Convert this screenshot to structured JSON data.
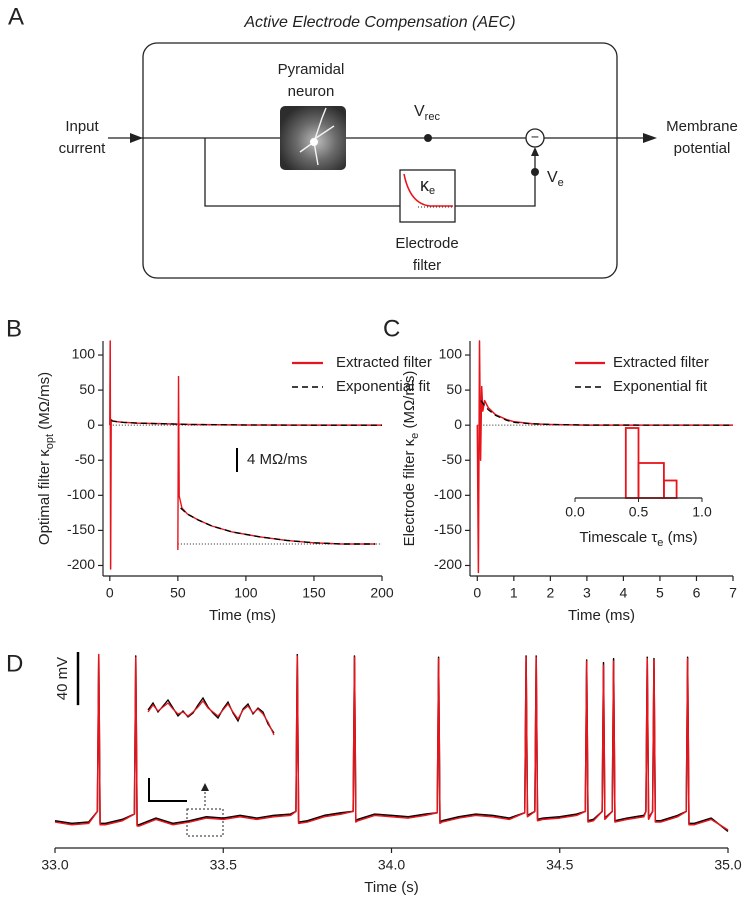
{
  "panel_labels": [
    "A",
    "B",
    "C",
    "D"
  ],
  "diagram": {
    "title": "Active Electrode Compensation (AEC)",
    "input": [
      "Input",
      "current"
    ],
    "output": [
      "Membrane",
      "potential"
    ],
    "neuron": [
      "Pyramidal",
      "neuron"
    ],
    "v_rec": {
      "base": "V",
      "sub": "rec"
    },
    "v_e": {
      "base": "V",
      "sub": "e"
    },
    "filter_symbol": {
      "base": "κ",
      "sub": "e"
    },
    "filter": [
      "Electrode",
      "filter"
    ],
    "subtract": "−"
  },
  "chart_data": [
    {
      "type": "line",
      "xlabel": "Time (ms)",
      "ylabel": {
        "base": "Optimal filter κ",
        "sub": "opt",
        "rest": " (MΩ/ms)"
      },
      "xlim": [
        -5,
        200
      ],
      "ylim": [
        -215,
        120
      ],
      "xticks": [
        0,
        50,
        100,
        150,
        200
      ],
      "yticks": [
        -200,
        -150,
        -100,
        -50,
        0,
        50,
        100
      ],
      "legend": "upper right",
      "series": [
        {
          "name": "Extracted filter",
          "color": "#e8141c",
          "style": "solid",
          "x": [
            0,
            0.3,
            0.6,
            1,
            2,
            5,
            10,
            20,
            40,
            60,
            100,
            150,
            200
          ],
          "values": [
            0,
            120,
            -205,
            8,
            6,
            5,
            4,
            3,
            2,
            1,
            0.3,
            0,
            0
          ]
        },
        {
          "name": "Exponential fit",
          "color": "#000000",
          "style": "dashed",
          "x": [
            1,
            2,
            5,
            10,
            20,
            40,
            60,
            100,
            150,
            200
          ],
          "values": [
            7,
            6,
            5,
            4,
            3,
            2,
            1,
            0.3,
            0,
            0
          ]
        }
      ],
      "inset": {
        "ylim": [
          -2,
          30
        ],
        "scale_bar": {
          "value": 4,
          "label": "4 MΩ/ms"
        },
        "series": [
          {
            "color": "#e8141c",
            "style": "solid",
            "x": [
              50,
              50.5,
              51,
              53,
              57,
              65,
              75,
              90,
              110,
              130,
              150,
              170,
              195
            ],
            "values": [
              -1,
              28,
              8,
              6,
              5,
              4,
              3,
              2,
              1.2,
              0.6,
              0.2,
              0,
              0
            ]
          },
          {
            "color": "#000000",
            "style": "dashed",
            "x": [
              52,
              57,
              65,
              75,
              90,
              110,
              130,
              150,
              170,
              195
            ],
            "values": [
              6,
              5,
              4,
              3,
              2,
              1.2,
              0.6,
              0.2,
              0,
              0
            ]
          }
        ]
      }
    },
    {
      "type": "line",
      "xlabel": "Time (ms)",
      "ylabel": {
        "base": "Electrode filter κ",
        "sub": "e",
        "rest": " (MΩ/ms)"
      },
      "xlim": [
        -0.2,
        7
      ],
      "ylim": [
        -215,
        120
      ],
      "xticks": [
        0,
        1,
        2,
        3,
        4,
        5,
        6,
        7
      ],
      "yticks": [
        -200,
        -150,
        -100,
        -50,
        0,
        50,
        100
      ],
      "legend": "upper right",
      "series": [
        {
          "name": "Extracted filter",
          "color": "#e8141c",
          "style": "solid",
          "x": [
            0,
            0.03,
            0.06,
            0.09,
            0.12,
            0.15,
            0.2,
            0.3,
            0.5,
            0.8,
            1,
            1.5,
            2,
            3,
            7
          ],
          "values": [
            0,
            -210,
            120,
            -50,
            55,
            20,
            35,
            25,
            15,
            8,
            5,
            2,
            1,
            0,
            0
          ]
        },
        {
          "name": "Exponential fit",
          "color": "#000000",
          "style": "dashed",
          "x": [
            0.1,
            0.2,
            0.3,
            0.5,
            0.8,
            1,
            1.5,
            2,
            3,
            7
          ],
          "values": [
            35,
            28,
            22,
            14,
            7,
            4,
            2,
            1,
            0.2,
            0
          ]
        }
      ],
      "inset": {
        "type": "histogram",
        "xlabel": {
          "base": "Timescale τ",
          "sub": "e",
          "rest": " (ms)"
        },
        "xlim": [
          0,
          1
        ],
        "xticks": [
          {
            "value": 0,
            "label": "0.0"
          },
          {
            "value": 0.5,
            "label": "0.5"
          },
          {
            "value": 1,
            "label": "1.0"
          }
        ],
        "ylim": [
          0,
          4
        ],
        "bins": [
          0.4,
          0.5,
          0.7,
          0.8
        ],
        "counts": [
          4,
          2,
          1
        ],
        "color": "#e8141c"
      }
    },
    {
      "type": "line",
      "xlabel": "Time (s)",
      "xlim": [
        33,
        35
      ],
      "ylim": [
        -80,
        60
      ],
      "xticks": [
        {
          "value": 33,
          "label": "33.0"
        },
        {
          "value": 33.5,
          "label": "33.5"
        },
        {
          "value": 34,
          "label": "34.0"
        },
        {
          "value": 34.5,
          "label": "34.5"
        },
        {
          "value": 35,
          "label": "35.0"
        }
      ],
      "scale_bar": {
        "value": 40,
        "label": "40 mV"
      },
      "x": [
        33.0,
        33.05,
        33.1,
        33.126,
        33.13,
        33.134,
        33.15,
        33.2,
        33.236,
        33.24,
        33.244,
        33.25,
        33.3,
        33.35,
        33.4,
        33.45,
        33.5,
        33.55,
        33.6,
        33.65,
        33.7,
        33.716,
        33.72,
        33.724,
        33.75,
        33.8,
        33.85,
        33.886,
        33.89,
        33.894,
        33.9,
        33.95,
        34.0,
        34.05,
        34.1,
        34.136,
        34.14,
        34.144,
        34.15,
        34.2,
        34.25,
        34.3,
        34.35,
        34.396,
        34.4,
        34.404,
        34.426,
        34.43,
        34.434,
        34.45,
        34.5,
        34.55,
        34.576,
        34.58,
        34.584,
        34.6,
        34.626,
        34.63,
        34.634,
        34.656,
        34.66,
        34.664,
        34.7,
        34.75,
        34.756,
        34.76,
        34.764,
        34.776,
        34.78,
        34.784,
        34.8,
        34.85,
        34.876,
        34.88,
        34.884,
        34.9,
        34.95,
        35.0
      ],
      "series": [
        {
          "color": "#000000",
          "values": [
            -67,
            -69,
            -68,
            -60,
            58,
            -69,
            -69,
            -66,
            -62,
            57,
            -70,
            -70,
            -65,
            -69,
            -67,
            -64,
            -65,
            -63,
            -65,
            -63,
            -62,
            -60,
            58,
            -68,
            -67,
            -63,
            -61,
            -60,
            57,
            -67,
            -66,
            -62,
            -63,
            -64,
            -62,
            -61,
            56,
            -68,
            -67,
            -64,
            -62,
            -63,
            -65,
            -61,
            57,
            -63,
            -60,
            57,
            -66,
            -65,
            -64,
            -62,
            -60,
            54,
            -67,
            -66,
            -60,
            52,
            -65,
            -60,
            55,
            -67,
            -65,
            -63,
            -60,
            56,
            -65,
            -60,
            55,
            -67,
            -67,
            -63,
            -60,
            56,
            -69,
            -69,
            -65,
            -75
          ]
        },
        {
          "color": "#e8141c",
          "values": [
            -68,
            -70,
            -69,
            -60,
            58,
            -70,
            -70,
            -67,
            -62,
            56,
            -71,
            -71,
            -66,
            -70,
            -68,
            -65,
            -66,
            -64,
            -66,
            -64,
            -63,
            -60,
            57,
            -69,
            -68,
            -64,
            -62,
            -60,
            56,
            -68,
            -67,
            -63,
            -64,
            -65,
            -63,
            -61,
            55,
            -69,
            -68,
            -65,
            -63,
            -64,
            -66,
            -61,
            56,
            -64,
            -60,
            56,
            -67,
            -66,
            -65,
            -63,
            -60,
            53,
            -68,
            -67,
            -60,
            50,
            -66,
            -60,
            53,
            -68,
            -66,
            -64,
            -60,
            55,
            -66,
            -60,
            54,
            -68,
            -68,
            -64,
            -60,
            55,
            -70,
            -70,
            -66,
            -74
          ]
        }
      ]
    }
  ]
}
